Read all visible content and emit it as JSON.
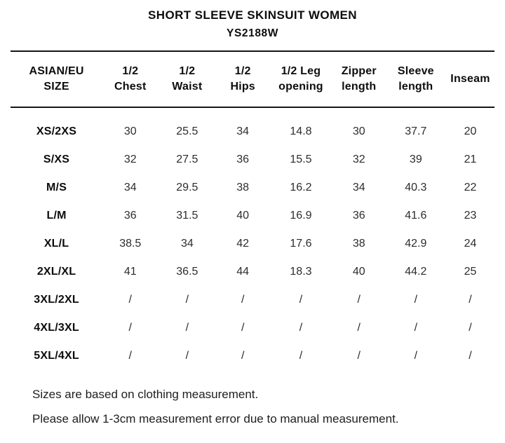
{
  "chart_data": {
    "type": "table",
    "title": "SHORT SLEEVE SKINSUIT WOMEN",
    "subtitle": "YS2188W",
    "columns": [
      "ASIAN/EU\nSIZE",
      "1/2\nChest",
      "1/2\nWaist",
      "1/2\nHips",
      "1/2 Leg\nopening",
      "Zipper\nlength",
      "Sleeve\nlength",
      "Inseam"
    ],
    "rows": [
      [
        "XS/2XS",
        "30",
        "25.5",
        "34",
        "14.8",
        "30",
        "37.7",
        "20"
      ],
      [
        "S/XS",
        "32",
        "27.5",
        "36",
        "15.5",
        "32",
        "39",
        "21"
      ],
      [
        "M/S",
        "34",
        "29.5",
        "38",
        "16.2",
        "34",
        "40.3",
        "22"
      ],
      [
        "L/M",
        "36",
        "31.5",
        "40",
        "16.9",
        "36",
        "41.6",
        "23"
      ],
      [
        "XL/L",
        "38.5",
        "34",
        "42",
        "17.6",
        "38",
        "42.9",
        "24"
      ],
      [
        "2XL/XL",
        "41",
        "36.5",
        "44",
        "18.3",
        "40",
        "44.2",
        "25"
      ],
      [
        "3XL/2XL",
        "/",
        "/",
        "/",
        "/",
        "/",
        "/",
        "/"
      ],
      [
        "4XL/3XL",
        "/",
        "/",
        "/",
        "/",
        "/",
        "/",
        "/"
      ],
      [
        "5XL/4XL",
        "/",
        "/",
        "/",
        "/",
        "/",
        "/",
        "/"
      ]
    ],
    "notes": [
      "Sizes are based on clothing measurement.",
      "Please allow 1-3cm measurement error due to manual measurement."
    ],
    "layout": {
      "grid": "horizontal rules above and below header only",
      "legend": "none"
    },
    "colors": {
      "background": "#ffffff",
      "text": "#0d0d0d",
      "value_text": "#2d2d2d",
      "rule": "#161616"
    }
  }
}
